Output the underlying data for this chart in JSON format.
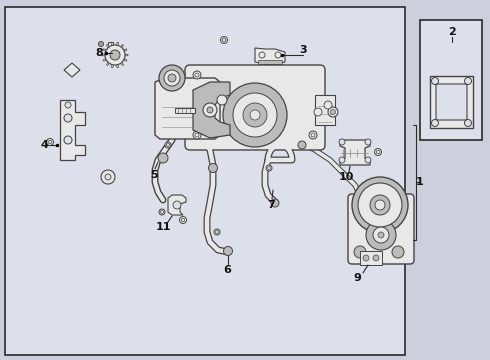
{
  "bg_color": "#cdd0dc",
  "inner_bg": "#dde0ea",
  "box_color": "#ffffff",
  "border_color": "#2a2a2a",
  "line_color": "#444444",
  "text_color": "#111111",
  "part_color": "#e8e8e8",
  "dark_part": "#bbbbbb",
  "fig_w": 4.9,
  "fig_h": 3.6,
  "dpi": 100
}
